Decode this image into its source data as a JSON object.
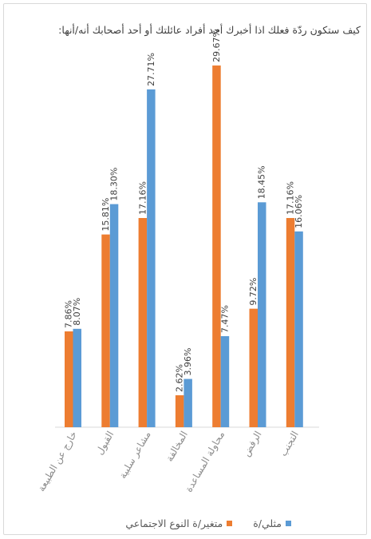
{
  "chart_data": {
    "type": "bar",
    "title": "كيف ستكون ردّة فعلك اذا أخبرك أحد أفراد عائلتك أو أحد أصحابك أنه/أنها:",
    "categories": [
      "خارج عن الطبيعة",
      "القبول",
      "مشاعر سلبية",
      "المخالفة",
      "محاولة المساعدة",
      "الرفض",
      "التجنب"
    ],
    "series": [
      {
        "name": "متغير/ة النوع الاجتماعي",
        "color": "#ed7d31",
        "values": [
          7.86,
          15.81,
          17.16,
          2.62,
          29.67,
          9.72,
          17.16
        ],
        "labels": [
          "7.86%",
          "15.81%",
          "17.16%",
          "2.62%",
          "29.67%",
          "9.72%",
          "17.16%"
        ]
      },
      {
        "name": "مثلي/ة",
        "color": "#5b9bd5",
        "values": [
          8.07,
          18.3,
          27.71,
          3.96,
          7.47,
          18.45,
          16.06
        ],
        "labels": [
          "8.07%",
          "18.30%",
          "27.71%",
          "3.96%",
          "7.47%",
          "18.45%",
          "16.06%"
        ]
      }
    ],
    "ylim": [
      0,
      30
    ],
    "legend_position": "bottom",
    "grid": false
  }
}
